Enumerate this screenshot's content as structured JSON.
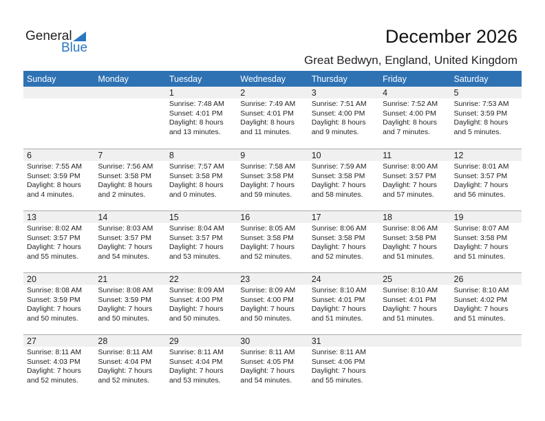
{
  "logo": {
    "general": "General",
    "blue": "Blue"
  },
  "title": "December 2026",
  "subtitle": "Great Bedwyn, England, United Kingdom",
  "colors": {
    "header": "#2e72b4",
    "accent": "#2a76c0",
    "date_strip": "#f0f0f0"
  },
  "days": [
    "Sunday",
    "Monday",
    "Tuesday",
    "Wednesday",
    "Thursday",
    "Friday",
    "Saturday"
  ],
  "weeks": [
    [
      null,
      null,
      {
        "day": "1",
        "sunrise": "Sunrise: 7:48 AM",
        "sunset": "Sunset: 4:01 PM",
        "daylight": "Daylight: 8 hours",
        "minutes": "and 13 minutes."
      },
      {
        "day": "2",
        "sunrise": "Sunrise: 7:49 AM",
        "sunset": "Sunset: 4:01 PM",
        "daylight": "Daylight: 8 hours",
        "minutes": "and 11 minutes."
      },
      {
        "day": "3",
        "sunrise": "Sunrise: 7:51 AM",
        "sunset": "Sunset: 4:00 PM",
        "daylight": "Daylight: 8 hours",
        "minutes": "and 9 minutes."
      },
      {
        "day": "4",
        "sunrise": "Sunrise: 7:52 AM",
        "sunset": "Sunset: 4:00 PM",
        "daylight": "Daylight: 8 hours",
        "minutes": "and 7 minutes."
      },
      {
        "day": "5",
        "sunrise": "Sunrise: 7:53 AM",
        "sunset": "Sunset: 3:59 PM",
        "daylight": "Daylight: 8 hours",
        "minutes": "and 5 minutes."
      }
    ],
    [
      {
        "day": "6",
        "sunrise": "Sunrise: 7:55 AM",
        "sunset": "Sunset: 3:59 PM",
        "daylight": "Daylight: 8 hours",
        "minutes": "and 4 minutes."
      },
      {
        "day": "7",
        "sunrise": "Sunrise: 7:56 AM",
        "sunset": "Sunset: 3:58 PM",
        "daylight": "Daylight: 8 hours",
        "minutes": "and 2 minutes."
      },
      {
        "day": "8",
        "sunrise": "Sunrise: 7:57 AM",
        "sunset": "Sunset: 3:58 PM",
        "daylight": "Daylight: 8 hours",
        "minutes": "and 0 minutes."
      },
      {
        "day": "9",
        "sunrise": "Sunrise: 7:58 AM",
        "sunset": "Sunset: 3:58 PM",
        "daylight": "Daylight: 7 hours",
        "minutes": "and 59 minutes."
      },
      {
        "day": "10",
        "sunrise": "Sunrise: 7:59 AM",
        "sunset": "Sunset: 3:58 PM",
        "daylight": "Daylight: 7 hours",
        "minutes": "and 58 minutes."
      },
      {
        "day": "11",
        "sunrise": "Sunrise: 8:00 AM",
        "sunset": "Sunset: 3:57 PM",
        "daylight": "Daylight: 7 hours",
        "minutes": "and 57 minutes."
      },
      {
        "day": "12",
        "sunrise": "Sunrise: 8:01 AM",
        "sunset": "Sunset: 3:57 PM",
        "daylight": "Daylight: 7 hours",
        "minutes": "and 56 minutes."
      }
    ],
    [
      {
        "day": "13",
        "sunrise": "Sunrise: 8:02 AM",
        "sunset": "Sunset: 3:57 PM",
        "daylight": "Daylight: 7 hours",
        "minutes": "and 55 minutes."
      },
      {
        "day": "14",
        "sunrise": "Sunrise: 8:03 AM",
        "sunset": "Sunset: 3:57 PM",
        "daylight": "Daylight: 7 hours",
        "minutes": "and 54 minutes."
      },
      {
        "day": "15",
        "sunrise": "Sunrise: 8:04 AM",
        "sunset": "Sunset: 3:57 PM",
        "daylight": "Daylight: 7 hours",
        "minutes": "and 53 minutes."
      },
      {
        "day": "16",
        "sunrise": "Sunrise: 8:05 AM",
        "sunset": "Sunset: 3:58 PM",
        "daylight": "Daylight: 7 hours",
        "minutes": "and 52 minutes."
      },
      {
        "day": "17",
        "sunrise": "Sunrise: 8:06 AM",
        "sunset": "Sunset: 3:58 PM",
        "daylight": "Daylight: 7 hours",
        "minutes": "and 52 minutes."
      },
      {
        "day": "18",
        "sunrise": "Sunrise: 8:06 AM",
        "sunset": "Sunset: 3:58 PM",
        "daylight": "Daylight: 7 hours",
        "minutes": "and 51 minutes."
      },
      {
        "day": "19",
        "sunrise": "Sunrise: 8:07 AM",
        "sunset": "Sunset: 3:58 PM",
        "daylight": "Daylight: 7 hours",
        "minutes": "and 51 minutes."
      }
    ],
    [
      {
        "day": "20",
        "sunrise": "Sunrise: 8:08 AM",
        "sunset": "Sunset: 3:59 PM",
        "daylight": "Daylight: 7 hours",
        "minutes": "and 50 minutes."
      },
      {
        "day": "21",
        "sunrise": "Sunrise: 8:08 AM",
        "sunset": "Sunset: 3:59 PM",
        "daylight": "Daylight: 7 hours",
        "minutes": "and 50 minutes."
      },
      {
        "day": "22",
        "sunrise": "Sunrise: 8:09 AM",
        "sunset": "Sunset: 4:00 PM",
        "daylight": "Daylight: 7 hours",
        "minutes": "and 50 minutes."
      },
      {
        "day": "23",
        "sunrise": "Sunrise: 8:09 AM",
        "sunset": "Sunset: 4:00 PM",
        "daylight": "Daylight: 7 hours",
        "minutes": "and 50 minutes."
      },
      {
        "day": "24",
        "sunrise": "Sunrise: 8:10 AM",
        "sunset": "Sunset: 4:01 PM",
        "daylight": "Daylight: 7 hours",
        "minutes": "and 51 minutes."
      },
      {
        "day": "25",
        "sunrise": "Sunrise: 8:10 AM",
        "sunset": "Sunset: 4:01 PM",
        "daylight": "Daylight: 7 hours",
        "minutes": "and 51 minutes."
      },
      {
        "day": "26",
        "sunrise": "Sunrise: 8:10 AM",
        "sunset": "Sunset: 4:02 PM",
        "daylight": "Daylight: 7 hours",
        "minutes": "and 51 minutes."
      }
    ],
    [
      {
        "day": "27",
        "sunrise": "Sunrise: 8:11 AM",
        "sunset": "Sunset: 4:03 PM",
        "daylight": "Daylight: 7 hours",
        "minutes": "and 52 minutes."
      },
      {
        "day": "28",
        "sunrise": "Sunrise: 8:11 AM",
        "sunset": "Sunset: 4:04 PM",
        "daylight": "Daylight: 7 hours",
        "minutes": "and 52 minutes."
      },
      {
        "day": "29",
        "sunrise": "Sunrise: 8:11 AM",
        "sunset": "Sunset: 4:04 PM",
        "daylight": "Daylight: 7 hours",
        "minutes": "and 53 minutes."
      },
      {
        "day": "30",
        "sunrise": "Sunrise: 8:11 AM",
        "sunset": "Sunset: 4:05 PM",
        "daylight": "Daylight: 7 hours",
        "minutes": "and 54 minutes."
      },
      {
        "day": "31",
        "sunrise": "Sunrise: 8:11 AM",
        "sunset": "Sunset: 4:06 PM",
        "daylight": "Daylight: 7 hours",
        "minutes": "and 55 minutes."
      },
      null,
      null
    ]
  ]
}
